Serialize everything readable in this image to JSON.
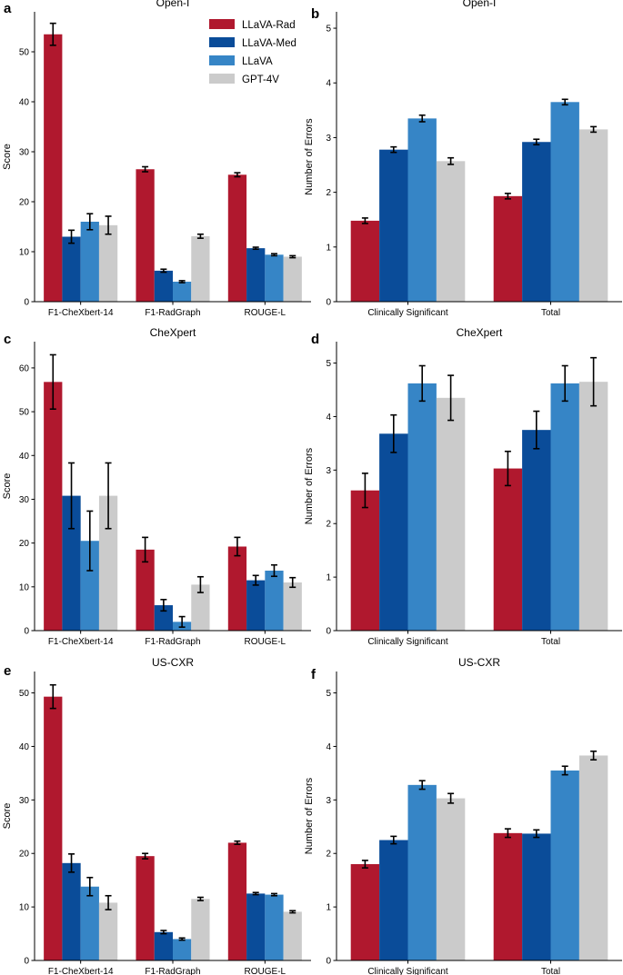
{
  "colors": {
    "series": [
      "#b0182e",
      "#0a4c99",
      "#3685c6",
      "#cbcbcb"
    ],
    "axis": "#000000",
    "error_bar": "#000000"
  },
  "legend": {
    "items": [
      "LLaVA-Rad",
      "LLaVA-Med",
      "LLaVA",
      "GPT-4V"
    ]
  },
  "chart_data": [
    {
      "id": "a",
      "letter": "a",
      "type": "bar",
      "title": "Open-I",
      "xlabel": "",
      "ylabel": "Score",
      "ylim": [
        0,
        58
      ],
      "yticks": [
        0,
        10,
        20,
        30,
        40,
        50
      ],
      "categories": [
        "F1-CheXbert-14",
        "F1-RadGraph",
        "ROUGE-L"
      ],
      "series": [
        {
          "name": "LLaVA-Rad",
          "values": [
            53.5,
            26.5,
            25.4
          ],
          "errors": [
            2.2,
            0.5,
            0.4
          ]
        },
        {
          "name": "LLaVA-Med",
          "values": [
            13.0,
            6.2,
            10.7
          ],
          "errors": [
            1.3,
            0.3,
            0.2
          ]
        },
        {
          "name": "LLaVA",
          "values": [
            16.0,
            4.0,
            9.4
          ],
          "errors": [
            1.6,
            0.2,
            0.2
          ]
        },
        {
          "name": "GPT-4V",
          "values": [
            15.3,
            13.1,
            9.0
          ],
          "errors": [
            1.8,
            0.4,
            0.2
          ]
        }
      ],
      "legend": true
    },
    {
      "id": "b",
      "letter": "b",
      "type": "bar",
      "title": "Open-I",
      "xlabel": "",
      "ylabel": "Number of Errors",
      "ylim": [
        0,
        5.3
      ],
      "yticks": [
        0,
        1,
        2,
        3,
        4,
        5
      ],
      "categories": [
        "Clinically Significant",
        "Total"
      ],
      "series": [
        {
          "name": "LLaVA-Rad",
          "values": [
            1.48,
            1.93
          ],
          "errors": [
            0.05,
            0.05
          ]
        },
        {
          "name": "LLaVA-Med",
          "values": [
            2.78,
            2.92
          ],
          "errors": [
            0.05,
            0.05
          ]
        },
        {
          "name": "LLaVA",
          "values": [
            3.35,
            3.65
          ],
          "errors": [
            0.06,
            0.05
          ]
        },
        {
          "name": "GPT-4V",
          "values": [
            2.57,
            3.15
          ],
          "errors": [
            0.06,
            0.05
          ]
        }
      ],
      "legend": false
    },
    {
      "id": "c",
      "letter": "c",
      "type": "bar",
      "title": "CheXpert",
      "xlabel": "",
      "ylabel": "Score",
      "ylim": [
        0,
        66
      ],
      "yticks": [
        0,
        10,
        20,
        30,
        40,
        50,
        60
      ],
      "categories": [
        "F1-CheXbert-14",
        "F1-RadGraph",
        "ROUGE-L"
      ],
      "series": [
        {
          "name": "LLaVA-Rad",
          "values": [
            56.8,
            18.5,
            19.2
          ],
          "errors": [
            6.2,
            2.8,
            2.1
          ]
        },
        {
          "name": "LLaVA-Med",
          "values": [
            30.8,
            5.8,
            11.5
          ],
          "errors": [
            7.5,
            1.3,
            1.1
          ]
        },
        {
          "name": "LLaVA",
          "values": [
            20.5,
            2.0,
            13.7
          ],
          "errors": [
            6.8,
            1.2,
            1.3
          ]
        },
        {
          "name": "GPT-4V",
          "values": [
            30.8,
            10.5,
            11.0
          ],
          "errors": [
            7.5,
            1.8,
            1.1
          ]
        }
      ],
      "legend": false
    },
    {
      "id": "d",
      "letter": "d",
      "type": "bar",
      "title": "CheXpert",
      "xlabel": "",
      "ylabel": "Number of Errors",
      "ylim": [
        0,
        5.4
      ],
      "yticks": [
        0,
        1,
        2,
        3,
        4,
        5
      ],
      "categories": [
        "Clinically Significant",
        "Total"
      ],
      "series": [
        {
          "name": "LLaVA-Rad",
          "values": [
            2.62,
            3.03
          ],
          "errors": [
            0.32,
            0.32
          ]
        },
        {
          "name": "LLaVA-Med",
          "values": [
            3.68,
            3.75
          ],
          "errors": [
            0.35,
            0.35
          ]
        },
        {
          "name": "LLaVA",
          "values": [
            4.62,
            4.62
          ],
          "errors": [
            0.33,
            0.33
          ]
        },
        {
          "name": "GPT-4V",
          "values": [
            4.35,
            4.65
          ],
          "errors": [
            0.42,
            0.45
          ]
        }
      ],
      "legend": false
    },
    {
      "id": "e",
      "letter": "e",
      "type": "bar",
      "title": "US-CXR",
      "xlabel": "",
      "ylabel": "Score",
      "ylim": [
        0,
        54
      ],
      "yticks": [
        0,
        10,
        20,
        30,
        40,
        50
      ],
      "categories": [
        "F1-CheXbert-14",
        "F1-RadGraph",
        "ROUGE-L"
      ],
      "series": [
        {
          "name": "LLaVA-Rad",
          "values": [
            49.3,
            19.5,
            22.0
          ],
          "errors": [
            2.2,
            0.5,
            0.3
          ]
        },
        {
          "name": "LLaVA-Med",
          "values": [
            18.2,
            5.3,
            12.5
          ],
          "errors": [
            1.7,
            0.3,
            0.2
          ]
        },
        {
          "name": "LLaVA",
          "values": [
            13.8,
            4.0,
            12.3
          ],
          "errors": [
            1.7,
            0.2,
            0.2
          ]
        },
        {
          "name": "GPT-4V",
          "values": [
            10.8,
            11.5,
            9.1
          ],
          "errors": [
            1.3,
            0.3,
            0.2
          ]
        }
      ],
      "legend": false
    },
    {
      "id": "f",
      "letter": "f",
      "type": "bar",
      "title": "US-CXR",
      "xlabel": "",
      "ylabel": "Number of Errors",
      "ylim": [
        0,
        5.4
      ],
      "yticks": [
        0,
        1,
        2,
        3,
        4,
        5
      ],
      "categories": [
        "Clinically Significant",
        "Total"
      ],
      "series": [
        {
          "name": "LLaVA-Rad",
          "values": [
            1.8,
            2.38
          ],
          "errors": [
            0.07,
            0.08
          ]
        },
        {
          "name": "LLaVA-Med",
          "values": [
            2.25,
            2.37
          ],
          "errors": [
            0.07,
            0.07
          ]
        },
        {
          "name": "LLaVA",
          "values": [
            3.28,
            3.55
          ],
          "errors": [
            0.08,
            0.08
          ]
        },
        {
          "name": "GPT-4V",
          "values": [
            3.03,
            3.83
          ],
          "errors": [
            0.09,
            0.08
          ]
        }
      ],
      "legend": false
    }
  ]
}
